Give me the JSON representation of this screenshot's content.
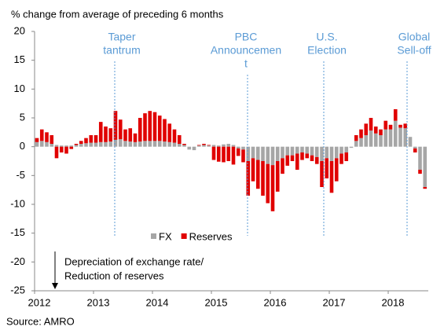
{
  "chart_data": {
    "type": "stacked_bar",
    "y_axis_label": "% change from average of preceding 6 months",
    "source": "Source: AMRO",
    "note": [
      "Depreciation of exchange rate/",
      "Reduction of reserves"
    ],
    "annotations": [
      [
        "Taper",
        "tantrum"
      ],
      [
        "PBC",
        "Announcemen",
        "t"
      ],
      [
        "U.S.",
        "Election"
      ],
      [
        "Global",
        "Sell-off"
      ]
    ],
    "categories": [
      "2012",
      null,
      null,
      null,
      null,
      null,
      null,
      null,
      null,
      null,
      null,
      null,
      "2013",
      null,
      null,
      null,
      null,
      null,
      null,
      null,
      null,
      null,
      null,
      null,
      "2014",
      null,
      null,
      null,
      null,
      null,
      null,
      null,
      null,
      null,
      null,
      null,
      "2015",
      null,
      null,
      null,
      null,
      null,
      null,
      null,
      null,
      null,
      null,
      null,
      "2016",
      null,
      null,
      null,
      null,
      null,
      null,
      null,
      null,
      null,
      null,
      null,
      "2017",
      null,
      null,
      null,
      null,
      null,
      null,
      null,
      null,
      null,
      null,
      null,
      "2018",
      null,
      null,
      null,
      null,
      null,
      null,
      null
    ],
    "series": [
      {
        "name": "FX",
        "color": "#a6a6a6",
        "values": [
          0.8,
          1,
          0.8,
          0.5,
          0.3,
          0.2,
          0.2,
          0.2,
          0.3,
          0.5,
          0.6,
          0.7,
          0.7,
          0.8,
          0.8,
          0.9,
          1.2,
          1.3,
          1,
          0.9,
          0.8,
          0.9,
          1,
          1,
          1,
          1,
          0.9,
          0.8,
          0.7,
          0.5,
          0.3,
          -0.5,
          -0.6,
          0.2,
          0.3,
          0.2,
          0.3,
          0.2,
          0.4,
          0.5,
          0.3,
          -0.3,
          -0.5,
          -2.5,
          -2,
          -2.3,
          -2.5,
          -3,
          -3.2,
          -2.5,
          -2,
          -1.5,
          -1.5,
          -1.2,
          -1,
          -1.2,
          -1.5,
          -1.8,
          -2.5,
          -2,
          -2.5,
          -2,
          -1.2,
          -1,
          -0.2,
          1,
          1.5,
          2,
          2.8,
          2.3,
          2,
          3,
          3,
          4.5,
          3.3,
          3.2,
          1.7,
          -0.3,
          -4,
          -7
        ]
      },
      {
        "name": "Reserves",
        "color": "#e00000",
        "values": [
          0.7,
          2,
          1.7,
          1.5,
          -2,
          -1,
          -1.2,
          -0.4,
          0.2,
          0.5,
          0.9,
          1.3,
          1.3,
          3.5,
          2.7,
          2.3,
          5,
          3.4,
          2,
          2.3,
          1.5,
          4.1,
          4.8,
          5.2,
          5,
          4.4,
          3.9,
          3.2,
          2.3,
          1.5,
          0.2,
          0,
          0,
          0.1,
          0.2,
          0.1,
          -2.3,
          -2.6,
          -2.7,
          -2.5,
          -3.1,
          -1.3,
          -2.2,
          -6,
          -4,
          -5,
          -6,
          -6.8,
          -8,
          -5.3,
          -2.7,
          -1.8,
          -1,
          -2.8,
          -1.3,
          -0.8,
          -1,
          -1.2,
          -4.5,
          -3.5,
          -5.5,
          -4,
          -1.8,
          -1.5,
          0,
          1,
          1.5,
          2,
          2.2,
          1.2,
          1,
          1.5,
          0.8,
          2,
          0.5,
          0.8,
          0,
          -0.7,
          -0.7,
          -0.3
        ]
      }
    ],
    "ylim": [
      -25,
      20
    ],
    "yticks": [
      -25,
      -20,
      -15,
      -10,
      -5,
      0,
      5,
      10,
      15,
      20
    ]
  }
}
